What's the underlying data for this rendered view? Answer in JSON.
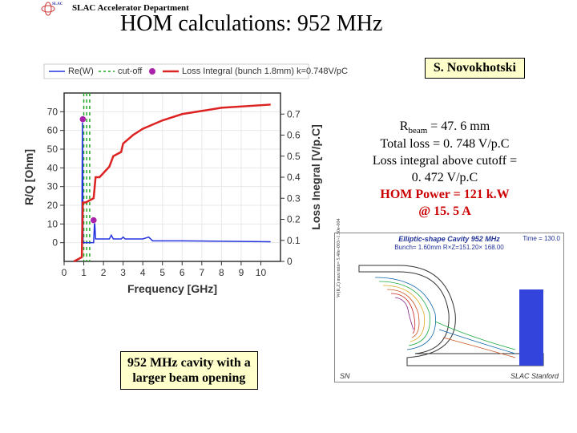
{
  "header": {
    "dept": "SLAC Accelerator Department",
    "title": "HOM calculations: 952 MHz"
  },
  "author": "S. Novokhotski",
  "results": {
    "r_beam_label": "R",
    "r_beam_sub": "beam",
    "r_beam_val": " = 47. 6 mm",
    "total_loss": "Total loss = 0. 748 V/p.C",
    "cutoff1": "Loss integral above cutoff =",
    "cutoff2": "0. 472 V/p.C",
    "hom1": "HOM Power = 121 k.W",
    "hom2": "@ 15. 5 A"
  },
  "cavity_label": {
    "l1": "952 MHz cavity with a",
    "l2": "larger beam opening"
  },
  "chart": {
    "xlabel": "Frequency [GHz]",
    "ylabel_left": "R/Q [Ohm]",
    "ylabel_right": "Loss Inegral [V/p.C]",
    "xlim": [
      0,
      11
    ],
    "xticks": [
      0,
      1,
      2,
      3,
      4,
      5,
      6,
      7,
      8,
      9,
      10
    ],
    "ylim_left": [
      -10,
      80
    ],
    "yticks_left": [
      0,
      10,
      20,
      30,
      40,
      50,
      60,
      70
    ],
    "ylim_right": [
      0,
      0.8
    ],
    "yticks_right": [
      0,
      0.1,
      0.2,
      0.3,
      0.4,
      0.5,
      0.6,
      0.7
    ],
    "grid_color": "#e8e8e8",
    "legend": {
      "re": "Re(W)",
      "cutoff": "cut-off",
      "marker": "",
      "loss": "Loss Integral (bunch 1.8mm) k=0.748V/pC"
    },
    "colors": {
      "re": "#2233dd",
      "cutoff": "#22aa22",
      "marker": "#aa22aa",
      "loss": "#dd2222",
      "axis": "#333333"
    },
    "cutoff_x": [
      1.0,
      1.15,
      1.3
    ],
    "markers": [
      {
        "x": 0.95,
        "y": 66
      },
      {
        "x": 1.5,
        "y": 12
      }
    ],
    "re_series": [
      [
        0.9,
        0
      ],
      [
        0.93,
        65
      ],
      [
        0.96,
        0
      ],
      [
        1.5,
        0
      ],
      [
        1.55,
        12
      ],
      [
        1.6,
        2
      ],
      [
        2.3,
        2
      ],
      [
        2.4,
        4
      ],
      [
        2.5,
        2
      ],
      [
        2.9,
        2
      ],
      [
        3.0,
        3
      ],
      [
        3.1,
        2
      ],
      [
        4.0,
        2
      ],
      [
        4.3,
        3
      ],
      [
        4.5,
        1
      ],
      [
        6,
        1
      ],
      [
        10.5,
        0.5
      ]
    ],
    "loss_series": [
      [
        0.5,
        0
      ],
      [
        0.9,
        0.02
      ],
      [
        0.95,
        0.28
      ],
      [
        1.1,
        0.28
      ],
      [
        1.5,
        0.3
      ],
      [
        1.6,
        0.4
      ],
      [
        1.8,
        0.4
      ],
      [
        2.3,
        0.45
      ],
      [
        2.5,
        0.5
      ],
      [
        2.9,
        0.52
      ],
      [
        3.0,
        0.56
      ],
      [
        3.5,
        0.6
      ],
      [
        4.0,
        0.63
      ],
      [
        5.0,
        0.67
      ],
      [
        6.0,
        0.7
      ],
      [
        8.0,
        0.73
      ],
      [
        10.5,
        0.745
      ]
    ]
  },
  "fieldplot": {
    "title": "Elliptic-shape Cavity 952 MHz",
    "sub": "Bunch= 1.60mm R×Z=151.20× 168.00",
    "time": "Time = 130.0",
    "credit_l": "SN",
    "credit_r": "SLAC Stanford"
  }
}
